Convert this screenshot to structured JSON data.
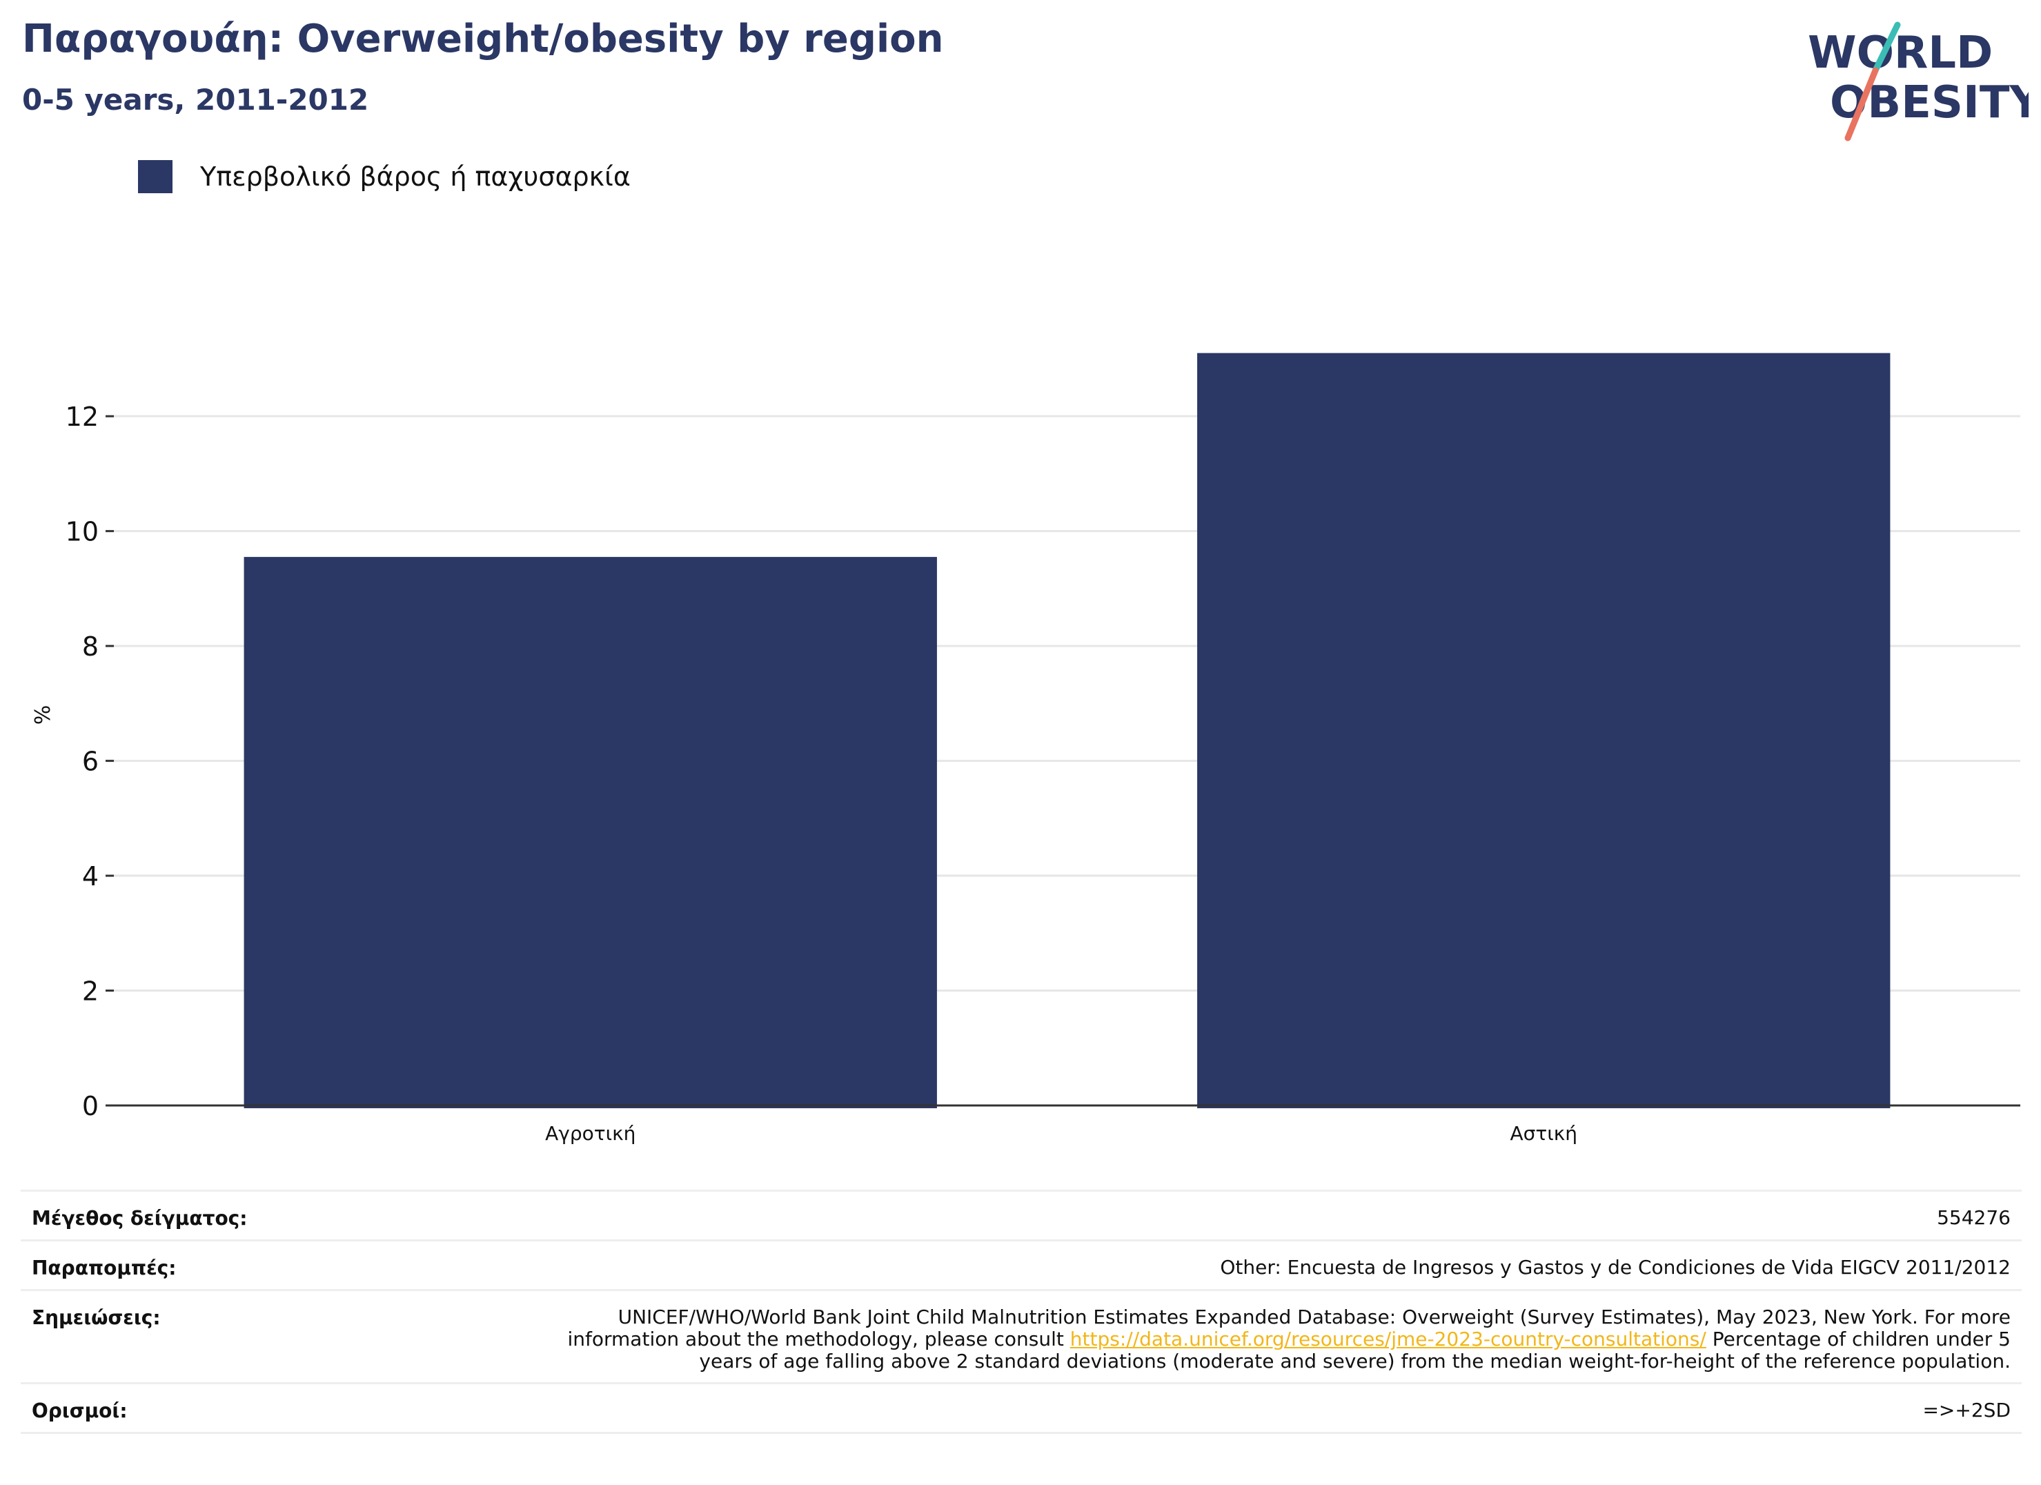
{
  "header": {
    "title": "Παραγουάη: Overweight/obesity by region",
    "subtitle": "0-5 years, 2011-2012"
  },
  "logo": {
    "line1": "WORLD",
    "line2": "OBESITY",
    "colors": {
      "text": "#2b3764",
      "slash_top": "#3bbdb5",
      "slash_bottom": "#e8735f"
    }
  },
  "colors": {
    "bar": "#2b3764",
    "grid": "#e6e6e6",
    "axis": "#333333"
  },
  "chart_data": {
    "type": "bar",
    "categories": [
      "Αγροτική",
      "Αστική"
    ],
    "series": [
      {
        "name": "Υπερβολικό βάρος ή παχυσαρκία",
        "values": [
          9.55,
          13.1
        ]
      }
    ],
    "ylabel": "%",
    "xlabel": "",
    "ylim": [
      0,
      13.6
    ],
    "yticks": [
      0,
      2,
      4,
      6,
      8,
      10,
      12
    ],
    "grid": true,
    "legend_position": "top-left"
  },
  "meta": {
    "sample_label": "Μέγεθος δείγματος:",
    "sample_value": "554276",
    "refs_label": "Παραπομπές:",
    "refs_value": "Other: Encuesta de Ingresos y Gastos y de Condiciones de Vida EIGCV 2011/2012",
    "notes_label": "Σημειώσεις:",
    "notes_text1": "UNICEF/WHO/World Bank Joint Child Malnutrition Estimates Expanded Database: Overweight (Survey Estimates), May 2023, New York. For more information about the methodology, please consult ",
    "notes_link": "https://data.unicef.org/resources/jme-2023-country-consultations/",
    "notes_text2": " Percentage of children under 5 years of age falling above 2 standard deviations (moderate and severe) from the median weight-for-height of the reference population.",
    "defs_label": "Ορισμοί:",
    "defs_value": "=>+2SD"
  }
}
